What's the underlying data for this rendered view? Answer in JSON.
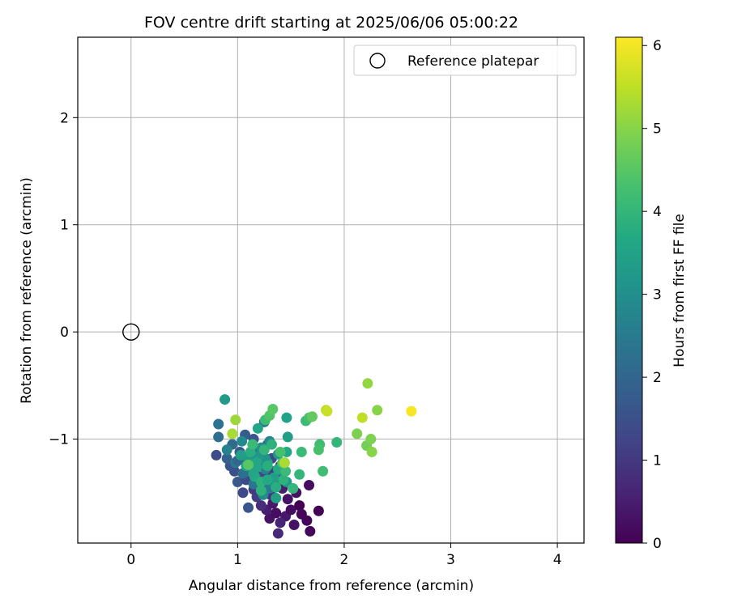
{
  "chart_data": {
    "type": "scatter",
    "title": "FOV centre drift starting at 2025/06/06 05:00:22",
    "xlabel": "Angular distance from reference (arcmin)",
    "ylabel": "Rotation from reference (arcmin)",
    "xlim": [
      -0.5,
      4.25
    ],
    "ylim": [
      -1.97,
      2.75
    ],
    "xticks": [
      0,
      1,
      2,
      3,
      4
    ],
    "yticks": [
      -1,
      0,
      1,
      2
    ],
    "xtick_labels": [
      "0",
      "1",
      "2",
      "3",
      "4"
    ],
    "ytick_labels": [
      "−1",
      "0",
      "1",
      "2"
    ],
    "grid": true,
    "legend": {
      "position": "top-right",
      "entries": [
        "Reference platepar"
      ]
    },
    "colorbar": {
      "label": "Hours from first FF file",
      "range": [
        0,
        6.1
      ],
      "ticks": [
        0,
        1,
        2,
        3,
        4,
        5,
        6
      ],
      "tick_labels": [
        "0",
        "1",
        "2",
        "3",
        "4",
        "5",
        "6"
      ],
      "colormap": "viridis"
    },
    "reference_point": {
      "x": 0,
      "y": 0
    },
    "points": [
      [
        1.38,
        -1.88,
        0.7
      ],
      [
        1.68,
        -1.86,
        0.1
      ],
      [
        1.3,
        -1.74,
        0.3
      ],
      [
        1.45,
        -1.72,
        0.4
      ],
      [
        1.76,
        -1.67,
        0.0
      ],
      [
        1.65,
        -1.76,
        0.1
      ],
      [
        1.53,
        -1.8,
        0.3
      ],
      [
        1.36,
        -1.69,
        0.2
      ],
      [
        1.58,
        -1.62,
        0.0
      ],
      [
        1.27,
        -1.66,
        0.5
      ],
      [
        1.4,
        -1.78,
        0.6
      ],
      [
        1.5,
        -1.66,
        0.2
      ],
      [
        1.22,
        -1.62,
        0.8
      ],
      [
        1.33,
        -1.6,
        0.4
      ],
      [
        1.6,
        -1.7,
        0.1
      ],
      [
        1.47,
        -1.56,
        0.3
      ],
      [
        1.31,
        -1.52,
        0.9
      ],
      [
        1.18,
        -1.54,
        1.1
      ],
      [
        1.42,
        -1.46,
        0.5
      ],
      [
        1.67,
        -1.43,
        0.2
      ],
      [
        1.25,
        -1.45,
        1.2
      ],
      [
        1.55,
        -1.5,
        0.3
      ],
      [
        1.1,
        -1.64,
        1.6
      ],
      [
        1.2,
        -1.35,
        1.4
      ],
      [
        1.37,
        -1.38,
        0.8
      ],
      [
        1.05,
        -1.5,
        1.3
      ],
      [
        1.15,
        -1.47,
        1.0
      ],
      [
        1.0,
        -1.4,
        1.7
      ],
      [
        0.97,
        -1.3,
        1.5
      ],
      [
        1.28,
        -1.32,
        1.2
      ],
      [
        1.08,
        -1.38,
        1.3
      ],
      [
        0.93,
        -1.25,
        1.6
      ],
      [
        1.12,
        -1.25,
        1.8
      ],
      [
        1.23,
        -1.22,
        1.4
      ],
      [
        1.35,
        -1.3,
        1.1
      ],
      [
        0.9,
        -1.18,
        1.9
      ],
      [
        1.02,
        -1.12,
        1.7
      ],
      [
        0.8,
        -1.15,
        1.4
      ],
      [
        1.18,
        -1.1,
        2.0
      ],
      [
        1.28,
        -1.05,
        1.7
      ],
      [
        1.32,
        -1.18,
        1.3
      ],
      [
        1.4,
        -1.25,
        1.0
      ],
      [
        0.95,
        -1.05,
        2.1
      ],
      [
        0.82,
        -0.98,
        2.2
      ],
      [
        1.07,
        -0.96,
        1.8
      ],
      [
        1.15,
        -1.0,
        1.6
      ],
      [
        1.25,
        -0.84,
        2.4
      ],
      [
        1.06,
        -1.2,
        2.3
      ],
      [
        0.98,
        -1.22,
        2.5
      ],
      [
        1.1,
        -1.3,
        2.6
      ],
      [
        1.2,
        -1.4,
        2.8
      ],
      [
        1.26,
        -1.28,
        2.7
      ],
      [
        1.3,
        -1.46,
        2.5
      ],
      [
        1.35,
        -1.42,
        3.0
      ],
      [
        1.24,
        -1.52,
        2.9
      ],
      [
        1.15,
        -1.42,
        2.4
      ],
      [
        1.05,
        -1.32,
        2.2
      ],
      [
        1.0,
        -1.2,
        2.0
      ],
      [
        1.14,
        -1.16,
        2.9
      ],
      [
        1.22,
        -1.08,
        3.1
      ],
      [
        1.3,
        -1.02,
        2.8
      ],
      [
        1.38,
        -1.14,
        3.2
      ],
      [
        1.42,
        -1.3,
        3.0
      ],
      [
        1.46,
        -1.4,
        3.3
      ],
      [
        1.36,
        -1.55,
        3.4
      ],
      [
        1.28,
        -1.22,
        3.5
      ],
      [
        1.18,
        -1.26,
        3.6
      ],
      [
        1.1,
        -1.18,
        3.3
      ],
      [
        1.04,
        -1.02,
        2.9
      ],
      [
        0.9,
        -1.1,
        2.7
      ],
      [
        1.26,
        -1.18,
        3.1
      ],
      [
        1.16,
        -1.35,
        3.7
      ],
      [
        1.34,
        -1.36,
        3.4
      ],
      [
        1.2,
        -1.16,
        3.2
      ],
      [
        1.44,
        -1.22,
        3.5
      ],
      [
        0.82,
        -0.86,
        2.3
      ],
      [
        0.88,
        -0.63,
        3.3
      ],
      [
        1.46,
        -0.8,
        3.5
      ],
      [
        1.47,
        -0.98,
        3.4
      ],
      [
        1.46,
        -1.12,
        3.6
      ],
      [
        1.19,
        -0.9,
        3.6
      ],
      [
        1.26,
        -0.82,
        4.2
      ],
      [
        1.3,
        -0.78,
        4.4
      ],
      [
        1.33,
        -0.72,
        4.5
      ],
      [
        1.64,
        -0.83,
        4.1
      ],
      [
        1.67,
        -0.8,
        4.3
      ],
      [
        1.7,
        -0.79,
        4.6
      ],
      [
        1.77,
        -1.05,
        4.2
      ],
      [
        1.76,
        -1.1,
        4.3
      ],
      [
        1.93,
        -1.03,
        4.0
      ],
      [
        1.6,
        -1.12,
        4.1
      ],
      [
        1.58,
        -1.33,
        4.0
      ],
      [
        1.8,
        -1.3,
        4.2
      ],
      [
        1.52,
        -1.46,
        4.0
      ],
      [
        1.43,
        -1.38,
        3.9
      ],
      [
        1.28,
        -1.25,
        3.8
      ],
      [
        1.22,
        -1.4,
        3.9
      ],
      [
        1.18,
        -1.22,
        3.6
      ],
      [
        1.12,
        -1.12,
        3.8
      ],
      [
        1.25,
        -1.1,
        4.0
      ],
      [
        1.32,
        -1.05,
        3.9
      ],
      [
        1.38,
        -1.28,
        3.7
      ],
      [
        1.36,
        -1.45,
        3.8
      ],
      [
        1.45,
        -1.3,
        4.1
      ],
      [
        1.28,
        -1.38,
        3.7
      ],
      [
        1.22,
        -1.48,
        3.9
      ],
      [
        1.15,
        -1.32,
        3.6
      ],
      [
        1.08,
        -1.25,
        3.5
      ],
      [
        1.03,
        -1.15,
        3.4
      ],
      [
        1.14,
        -1.05,
        4.1
      ],
      [
        1.42,
        -1.22,
        4.4
      ],
      [
        0.95,
        -0.95,
        5.3
      ],
      [
        0.98,
        -0.82,
        5.2
      ],
      [
        1.4,
        -1.12,
        4.3
      ],
      [
        1.1,
        -1.24,
        4.5
      ],
      [
        2.12,
        -0.95,
        4.9
      ],
      [
        2.22,
        -0.48,
        5.1
      ],
      [
        2.31,
        -0.73,
        5.0
      ],
      [
        2.21,
        -1.06,
        4.8
      ],
      [
        2.25,
        -1.0,
        4.9
      ],
      [
        2.26,
        -1.12,
        5.0
      ],
      [
        2.17,
        -0.8,
        5.5
      ],
      [
        1.83,
        -0.73,
        5.4
      ],
      [
        1.84,
        -0.74,
        5.6
      ],
      [
        1.44,
        -1.22,
        5.3
      ],
      [
        2.63,
        -0.74,
        6.05
      ]
    ]
  }
}
